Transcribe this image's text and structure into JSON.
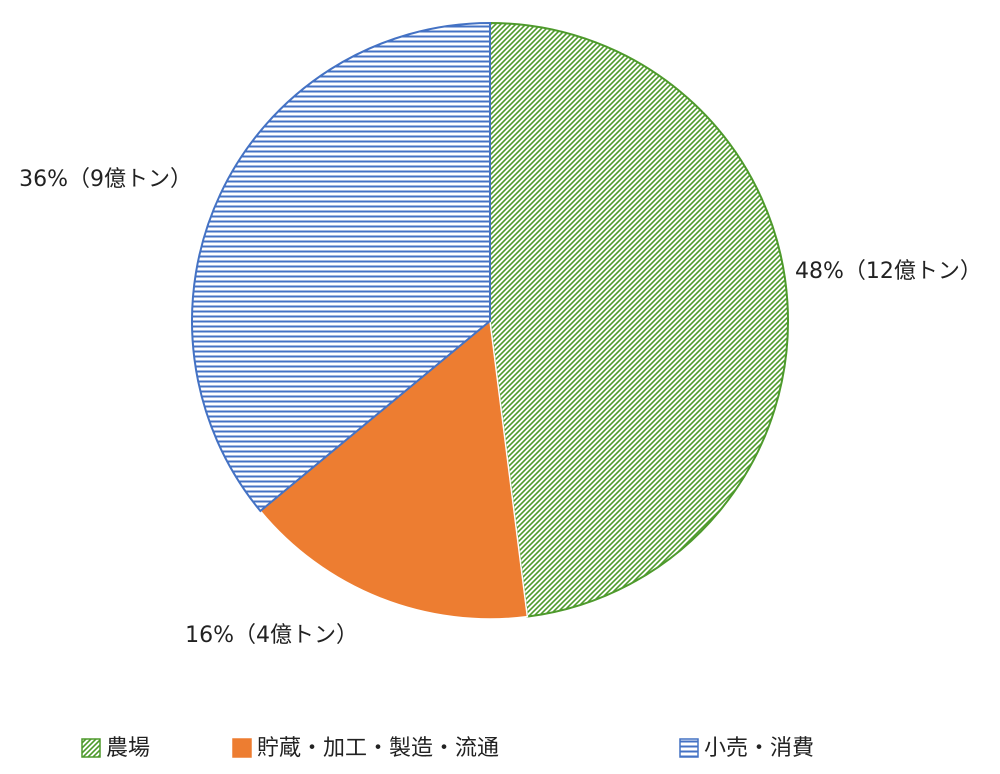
{
  "chart_data": {
    "type": "pie",
    "categories": [
      "農場",
      "貯蔵・加工・製造・流通",
      "小売・消費"
    ],
    "values": [
      48,
      16,
      36
    ],
    "value_labels": [
      "48%（12億トン）",
      "16%（4億トン）",
      "36%（9億トン）"
    ],
    "colors": [
      "#4e9a2c",
      "#ed7d31",
      "#4472c4"
    ],
    "patterns": [
      "diagonal",
      "solid",
      "horizontal"
    ],
    "legend": "bottom"
  }
}
